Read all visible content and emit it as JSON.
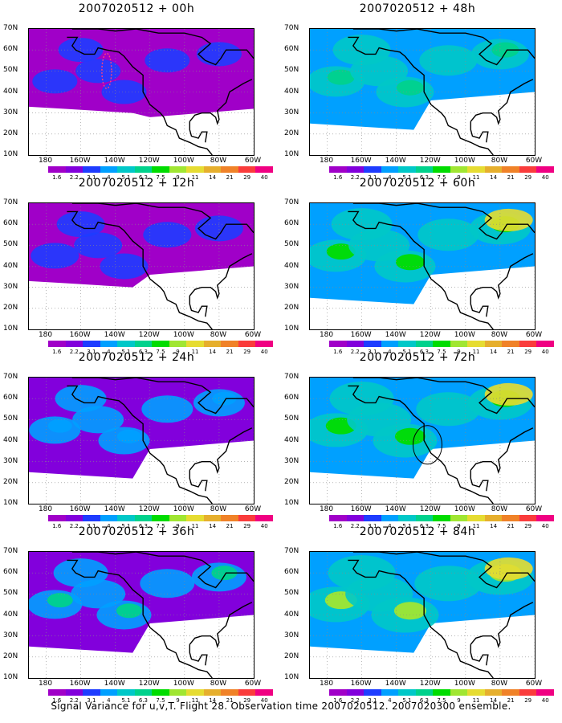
{
  "caption": "Signal Variance for u,v,T. Flight 28. Observation time 2007020512. 2007020300 ensemble.",
  "lat_labels": [
    "70N",
    "60N",
    "50N",
    "40N",
    "30N",
    "20N",
    "10N"
  ],
  "lon_labels": [
    "180",
    "160W",
    "140W",
    "120W",
    "100W",
    "80W",
    "60W"
  ],
  "colorbar": {
    "colors": [
      "#a000c8",
      "#8200dc",
      "#1e3cff",
      "#00a0ff",
      "#00c8c8",
      "#00d28c",
      "#00dc00",
      "#a0e632",
      "#e6dc32",
      "#e6af2d",
      "#f08228",
      "#fa3c3c",
      "#f00082"
    ],
    "labels": [
      "1.6",
      "2.2",
      "3.1",
      "4",
      "5.1",
      "6.3",
      "7.5",
      "9",
      "11",
      "14",
      "21",
      "29",
      "40"
    ]
  },
  "chart_data": [
    {
      "type": "heatmap",
      "title": "2007020512 + 00h",
      "level": 1
    },
    {
      "type": "heatmap",
      "title": "2007020512 + 12h",
      "level": 2
    },
    {
      "type": "heatmap",
      "title": "2007020512 + 24h",
      "level": 3
    },
    {
      "type": "heatmap",
      "title": "2007020512 + 36h",
      "level": 4
    },
    {
      "type": "heatmap",
      "title": "2007020512 + 48h",
      "level": 5
    },
    {
      "type": "heatmap",
      "title": "2007020512 + 60h",
      "level": 6
    },
    {
      "type": "heatmap",
      "title": "2007020512 + 72h",
      "level": 7
    },
    {
      "type": "heatmap",
      "title": "2007020512 + 84h",
      "level": 8
    }
  ]
}
